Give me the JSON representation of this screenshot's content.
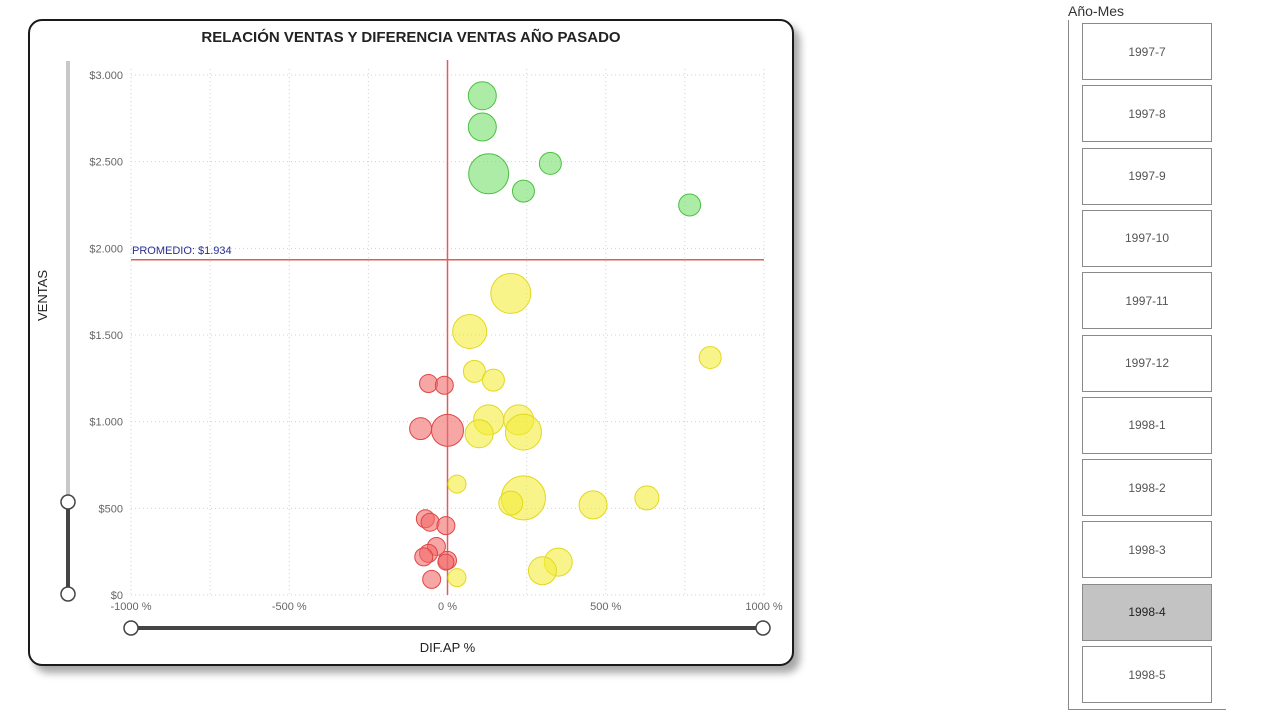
{
  "chart_data": {
    "type": "scatter",
    "title": "RELACIÓN VENTAS Y DIFERENCIA VENTAS AÑO PASADO",
    "xlabel": "DIF.AP %",
    "ylabel": "VENTAS",
    "xlim": [
      -1000,
      1000
    ],
    "ylim": [
      0,
      3000
    ],
    "x_ticks": [
      -1000,
      -500,
      0,
      500,
      1000
    ],
    "x_tick_labels": [
      "-1000 %",
      "-500 %",
      "0 %",
      "500 %",
      "1000 %"
    ],
    "y_ticks": [
      0,
      500,
      1000,
      1500,
      2000,
      2500,
      3000
    ],
    "y_tick_labels": [
      "$0",
      "$500",
      "$1.000",
      "$1.500",
      "$2.000",
      "$2.500",
      "$3.000"
    ],
    "grid": true,
    "average_line": {
      "label": "PROMEDIO: $1.934",
      "value": 1934
    },
    "zero_line_x": 0,
    "colors": {
      "red": "#f26a6a",
      "yellow": "#f4ec3a",
      "green": "#74e06c",
      "avg_line": "#e35a5a",
      "avg_label": "#2a2f8f"
    },
    "points": [
      {
        "x": 110,
        "y": 2880,
        "size": 14,
        "group": "green"
      },
      {
        "x": 110,
        "y": 2700,
        "size": 14,
        "group": "green"
      },
      {
        "x": 130,
        "y": 2430,
        "size": 20,
        "group": "green"
      },
      {
        "x": 325,
        "y": 2490,
        "size": 11,
        "group": "green"
      },
      {
        "x": 240,
        "y": 2330,
        "size": 11,
        "group": "green"
      },
      {
        "x": 765,
        "y": 2250,
        "size": 11,
        "group": "green"
      },
      {
        "x": 200,
        "y": 1740,
        "size": 20,
        "group": "yellow"
      },
      {
        "x": 70,
        "y": 1520,
        "size": 17,
        "group": "yellow"
      },
      {
        "x": 830,
        "y": 1370,
        "size": 11,
        "group": "yellow"
      },
      {
        "x": 85,
        "y": 1290,
        "size": 11,
        "group": "yellow"
      },
      {
        "x": 145,
        "y": 1240,
        "size": 11,
        "group": "yellow"
      },
      {
        "x": 130,
        "y": 1010,
        "size": 15,
        "group": "yellow"
      },
      {
        "x": 225,
        "y": 1010,
        "size": 15,
        "group": "yellow"
      },
      {
        "x": 100,
        "y": 930,
        "size": 14,
        "group": "yellow"
      },
      {
        "x": 240,
        "y": 940,
        "size": 18,
        "group": "yellow"
      },
      {
        "x": 30,
        "y": 640,
        "size": 9,
        "group": "yellow"
      },
      {
        "x": 240,
        "y": 560,
        "size": 22,
        "group": "yellow"
      },
      {
        "x": 200,
        "y": 530,
        "size": 12,
        "group": "yellow"
      },
      {
        "x": 460,
        "y": 520,
        "size": 14,
        "group": "yellow"
      },
      {
        "x": 630,
        "y": 560,
        "size": 12,
        "group": "yellow"
      },
      {
        "x": 350,
        "y": 190,
        "size": 14,
        "group": "yellow"
      },
      {
        "x": 300,
        "y": 140,
        "size": 14,
        "group": "yellow"
      },
      {
        "x": 30,
        "y": 100,
        "size": 9,
        "group": "yellow"
      },
      {
        "x": -60,
        "y": 1220,
        "size": 9,
        "group": "red"
      },
      {
        "x": -10,
        "y": 1210,
        "size": 9,
        "group": "red"
      },
      {
        "x": -85,
        "y": 960,
        "size": 11,
        "group": "red"
      },
      {
        "x": 0,
        "y": 950,
        "size": 16,
        "group": "red"
      },
      {
        "x": -70,
        "y": 440,
        "size": 9,
        "group": "red"
      },
      {
        "x": -55,
        "y": 420,
        "size": 9,
        "group": "red"
      },
      {
        "x": -5,
        "y": 400,
        "size": 9,
        "group": "red"
      },
      {
        "x": -35,
        "y": 280,
        "size": 9,
        "group": "red"
      },
      {
        "x": -60,
        "y": 240,
        "size": 9,
        "group": "red"
      },
      {
        "x": -75,
        "y": 220,
        "size": 9,
        "group": "red"
      },
      {
        "x": 0,
        "y": 200,
        "size": 9,
        "group": "red"
      },
      {
        "x": -5,
        "y": 190,
        "size": 8,
        "group": "red"
      },
      {
        "x": -50,
        "y": 90,
        "size": 9,
        "group": "red"
      }
    ]
  },
  "slicer": {
    "title": "Año-Mes",
    "items": [
      {
        "label": "1997-7",
        "selected": false
      },
      {
        "label": "1997-8",
        "selected": false
      },
      {
        "label": "1997-9",
        "selected": false
      },
      {
        "label": "1997-10",
        "selected": false
      },
      {
        "label": "1997-11",
        "selected": false
      },
      {
        "label": "1997-12",
        "selected": false
      },
      {
        "label": "1998-1",
        "selected": false
      },
      {
        "label": "1998-2",
        "selected": false
      },
      {
        "label": "1998-3",
        "selected": false
      },
      {
        "label": "1998-4",
        "selected": true
      },
      {
        "label": "1998-5",
        "selected": false
      }
    ]
  }
}
